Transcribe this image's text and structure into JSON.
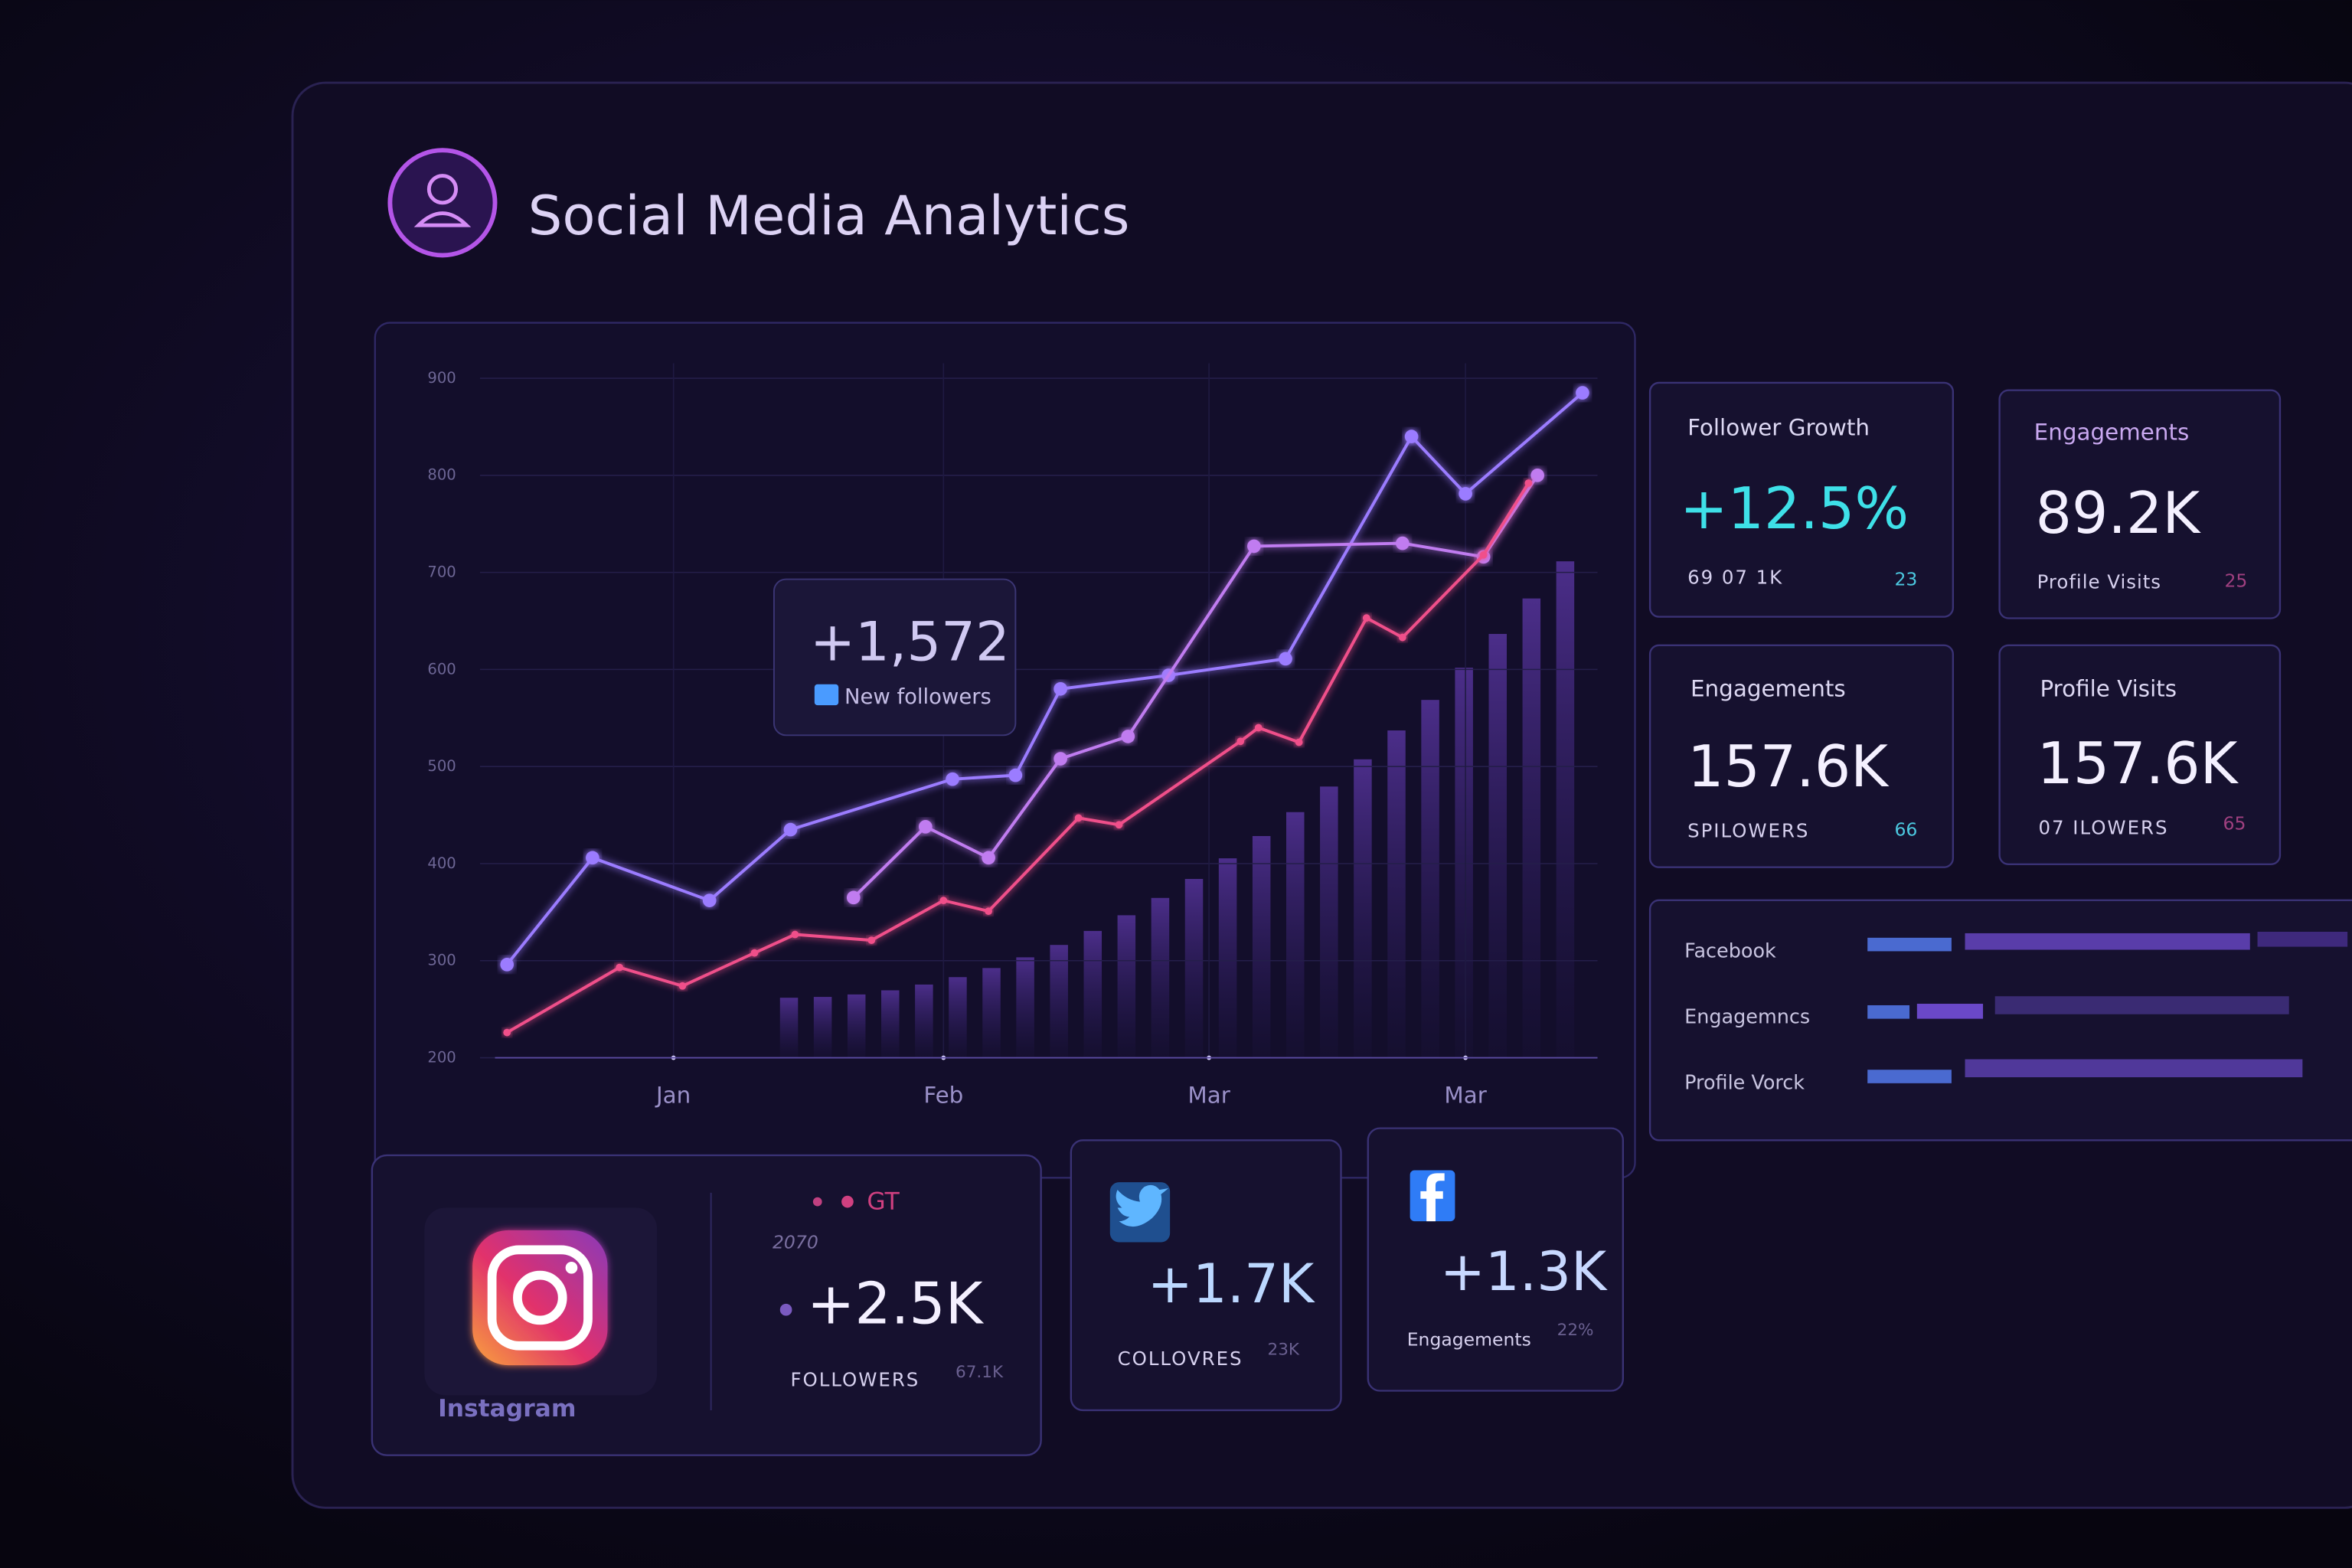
{
  "header": {
    "title": "Social Media Analytics"
  },
  "chart_data": {
    "type": "line",
    "xlim": [
      0,
      12
    ],
    "xticks": [
      {
        "value": 1.9,
        "label": "Jan"
      },
      {
        "value": 4.9,
        "label": "Feb"
      },
      {
        "value": 7.85,
        "label": "Mar"
      },
      {
        "value": 10.7,
        "label": "Mar"
      }
    ],
    "ylim": [
      200,
      900
    ],
    "yticks": [
      200,
      300,
      400,
      500,
      600,
      700,
      800,
      900
    ],
    "grid": true,
    "series": [
      {
        "color": "#9b7bff",
        "x": [
          0.05,
          1,
          2.3,
          3.2,
          5,
          5.7,
          6.2,
          7.4,
          8.7,
          10.1,
          10.7,
          12
        ],
        "values": [
          296,
          406,
          362,
          435,
          487,
          491,
          580,
          594,
          611,
          840,
          781,
          885
        ]
      },
      {
        "color": "#c07cf0",
        "x": [
          3.9,
          4.7,
          5.4,
          6.2,
          6.95,
          8.35,
          10,
          10.9,
          11.5
        ],
        "values": [
          365,
          438,
          406,
          508,
          531,
          727,
          730,
          716,
          800
        ]
      },
      {
        "color": "#f0508a",
        "x": [
          0.05,
          1.3,
          2,
          2.8,
          3.25,
          4.1,
          4.9,
          5.4,
          6.4,
          6.85,
          8.2,
          8.4,
          8.85,
          9.6,
          10,
          10.9,
          11.4
        ],
        "values": [
          226,
          293,
          274,
          308,
          327,
          321,
          362,
          351,
          447,
          440,
          526,
          540,
          525,
          653,
          633,
          718,
          792
        ]
      }
    ]
  },
  "tooltip": {
    "value": "+1,572",
    "label": "New followers"
  },
  "stat_cards": [
    {
      "title": "Follower Growth",
      "value": "+12.5%",
      "footer": "69 07 1K",
      "footer_value": "23"
    },
    {
      "title": "Engagements",
      "value": "89.2K",
      "footer": "Profile Visits",
      "footer_value": "25"
    },
    {
      "title": "Engagements",
      "value": "157.6K",
      "footer": "SPILOWERS",
      "footer_value": "66"
    },
    {
      "title": "Profile Visits",
      "value": "157.6K",
      "footer": "07 ILOWERS",
      "footer_value": "65"
    }
  ],
  "channel_bars": {
    "labels": [
      "Facebook",
      "Engagemncs",
      "Profile Vorck"
    ]
  },
  "channel_cards": {
    "instagram": {
      "name": "Instagram",
      "tag": "GT",
      "code": "2070",
      "value": "+2.5K",
      "label": "FOLLOWERS",
      "total": "67.1K"
    },
    "twitter": {
      "value": "+1.7K",
      "label": "COLLOVRES",
      "total": "23K"
    },
    "facebook": {
      "value": "+1.3K",
      "label": "Engagements",
      "total": "22%"
    }
  }
}
